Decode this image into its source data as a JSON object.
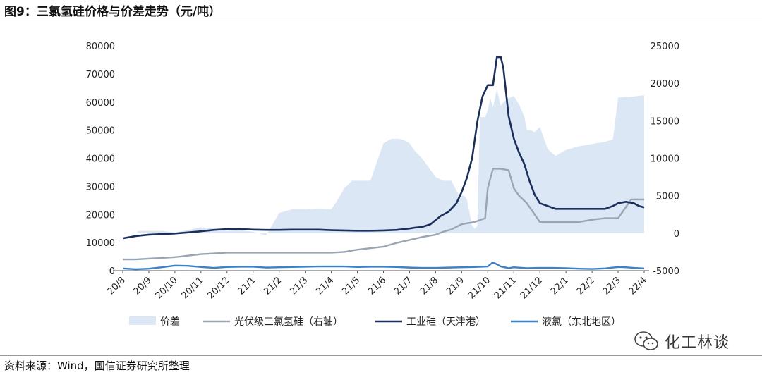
{
  "header": {
    "title": "图9：三氯氢硅价格与价差走势（元/吨）"
  },
  "footer": {
    "source": "资料来源：Wind，国信证券研究所整理"
  },
  "watermark": {
    "text": "化工林谈",
    "icon": "wechat-icon"
  },
  "chart_data": {
    "type": "line",
    "title": "图9：三氯氢硅价格与价差走势（元/吨）",
    "x_labels": [
      "20/8",
      "20/9",
      "20/10",
      "20/11",
      "20/12",
      "21/1",
      "21/2",
      "21/3",
      "21/4",
      "21/5",
      "21/6",
      "21/7",
      "21/8",
      "21/9",
      "21/10",
      "21/11",
      "21/12",
      "22/1",
      "22/2",
      "22/3",
      "22/4"
    ],
    "left_axis": {
      "min": 0,
      "max": 80000,
      "ticks": [
        0,
        10000,
        20000,
        30000,
        40000,
        50000,
        60000,
        70000,
        80000
      ]
    },
    "right_axis": {
      "min": -5000,
      "max": 25000,
      "ticks": [
        -5000,
        0,
        5000,
        10000,
        15000,
        20000,
        25000
      ]
    },
    "series": [
      {
        "name": "价差",
        "axis": "right",
        "style": "area",
        "color": "#dbe7f5",
        "x": [
          0.0,
          0.5,
          0.6,
          1.0,
          1.5,
          2.0,
          2.5,
          3.0,
          3.5,
          4.0,
          4.5,
          5.0,
          5.5,
          6.0,
          6.5,
          7.0,
          7.5,
          8.0,
          8.2,
          8.5,
          8.8,
          9.0,
          9.5,
          10.0,
          10.3,
          10.6,
          10.8,
          11.0,
          11.2,
          11.5,
          12.0,
          12.3,
          12.6,
          12.9,
          13.0,
          13.1,
          13.2,
          13.4,
          13.5,
          13.6,
          13.7,
          13.9,
          14.0,
          14.1,
          14.2,
          14.35,
          14.5,
          14.6,
          14.8,
          15.0,
          15.2,
          15.4,
          15.5,
          15.6,
          15.8,
          16.0,
          16.3,
          16.6,
          17.0,
          17.5,
          18.0,
          18.5,
          18.8,
          19.0,
          19.5,
          20.0
        ],
        "values": [
          0,
          0,
          300,
          300,
          300,
          100,
          400,
          800,
          600,
          300,
          400,
          200,
          -300,
          2700,
          3200,
          3200,
          3300,
          3200,
          4200,
          6000,
          7000,
          7000,
          7000,
          12000,
          12600,
          12600,
          12400,
          12000,
          11000,
          9900,
          7500,
          7000,
          7000,
          5000,
          5000,
          5000,
          4500,
          1000,
          600,
          1000,
          15500,
          15500,
          16400,
          18000,
          16800,
          19200,
          17000,
          17500,
          18000,
          18300,
          17200,
          15600,
          13800,
          13800,
          13500,
          14200,
          11200,
          10300,
          11100,
          11600,
          11900,
          12200,
          12500,
          18100,
          18200,
          18400
        ],
        "labels": []
      },
      {
        "name": "光伏级三氯氢硅（右轴）",
        "axis": "right",
        "style": "line",
        "color": "#9aa5b3",
        "x": [
          0.0,
          0.5,
          1.0,
          1.5,
          2.0,
          2.5,
          3.0,
          3.5,
          4.0,
          4.5,
          5.0,
          5.5,
          6.0,
          6.5,
          7.0,
          7.5,
          8.0,
          8.5,
          9.0,
          9.5,
          10.0,
          10.5,
          11.0,
          11.5,
          12.0,
          12.3,
          12.6,
          13.0,
          13.5,
          13.9,
          14.0,
          14.2,
          14.5,
          14.8,
          15.0,
          15.2,
          15.5,
          16.0,
          16.5,
          17.0,
          17.5,
          18.0,
          18.5,
          19.0,
          19.5,
          20.0
        ],
        "values": [
          -3500,
          -3500,
          -3400,
          -3300,
          -3200,
          -3000,
          -2800,
          -2700,
          -2600,
          -2600,
          -2600,
          -2600,
          -2600,
          -2600,
          -2600,
          -2600,
          -2600,
          -2500,
          -2200,
          -2000,
          -1800,
          -1300,
          -900,
          -500,
          -200,
          200,
          500,
          1200,
          1500,
          2000,
          6000,
          8600,
          8600,
          8400,
          6000,
          5000,
          4000,
          1500,
          1500,
          1500,
          1500,
          1800,
          2000,
          2000,
          4500,
          4500
        ],
        "labels": []
      },
      {
        "name": "工业硅（天津港）",
        "axis": "left",
        "style": "line",
        "color": "#1b2f5c",
        "x": [
          0.0,
          0.5,
          1.0,
          1.5,
          2.0,
          2.5,
          3.0,
          3.5,
          4.0,
          4.5,
          5.0,
          5.5,
          6.0,
          6.5,
          7.0,
          7.5,
          8.0,
          8.5,
          9.0,
          9.5,
          10.0,
          10.5,
          10.8,
          11.0,
          11.2,
          11.5,
          11.8,
          12.0,
          12.2,
          12.5,
          12.8,
          13.0,
          13.2,
          13.4,
          13.6,
          13.8,
          14.0,
          14.2,
          14.35,
          14.5,
          14.6,
          14.8,
          15.0,
          15.2,
          15.4,
          15.6,
          15.8,
          16.0,
          16.3,
          16.6,
          17.0,
          17.5,
          18.0,
          18.5,
          18.8,
          19.0,
          19.3,
          19.6,
          19.8,
          20.0
        ],
        "values": [
          11500,
          12300,
          12800,
          13000,
          13200,
          13600,
          14000,
          14500,
          14800,
          14800,
          14600,
          14500,
          14500,
          14600,
          14600,
          14600,
          14400,
          14300,
          14200,
          14200,
          14300,
          14500,
          14800,
          15000,
          15300,
          15600,
          16500,
          18000,
          19500,
          21000,
          24000,
          28000,
          33000,
          40000,
          53000,
          62000,
          66000,
          66000,
          76000,
          76000,
          72000,
          55000,
          47000,
          42000,
          38000,
          32000,
          27000,
          24000,
          23000,
          22000,
          22000,
          22000,
          22000,
          22000,
          23000,
          24000,
          24500,
          24000,
          23000,
          22500
        ],
        "labels": []
      },
      {
        "name": "液氯（东北地区）",
        "axis": "left",
        "style": "line",
        "color": "#3d82c4",
        "x": [
          0.0,
          0.5,
          1.0,
          1.5,
          2.0,
          2.5,
          3.0,
          3.5,
          4.0,
          4.5,
          5.0,
          5.5,
          6.0,
          6.5,
          7.0,
          7.5,
          8.0,
          8.5,
          9.0,
          9.5,
          10.0,
          10.5,
          11.0,
          11.5,
          12.0,
          12.5,
          13.0,
          13.5,
          14.0,
          14.2,
          14.5,
          14.8,
          15.0,
          15.5,
          16.0,
          16.5,
          17.0,
          17.5,
          18.0,
          18.5,
          19.0,
          19.3,
          19.6,
          20.0
        ],
        "values": [
          800,
          500,
          700,
          1200,
          1800,
          1700,
          1300,
          1000,
          1300,
          1400,
          1400,
          1100,
          1200,
          1300,
          1400,
          1500,
          1500,
          1500,
          1300,
          1400,
          1400,
          1300,
          1100,
          1000,
          1000,
          1100,
          1200,
          1300,
          1500,
          3000,
          1500,
          900,
          1200,
          900,
          1000,
          1000,
          900,
          700,
          600,
          800,
          1300,
          1200,
          1000,
          800
        ],
        "labels": []
      }
    ],
    "legend": [
      "价差",
      "光伏级三氯氢硅（右轴）",
      "工业硅（天津港）",
      "液氯（东北地区）"
    ],
    "legend_position": "bottom"
  }
}
